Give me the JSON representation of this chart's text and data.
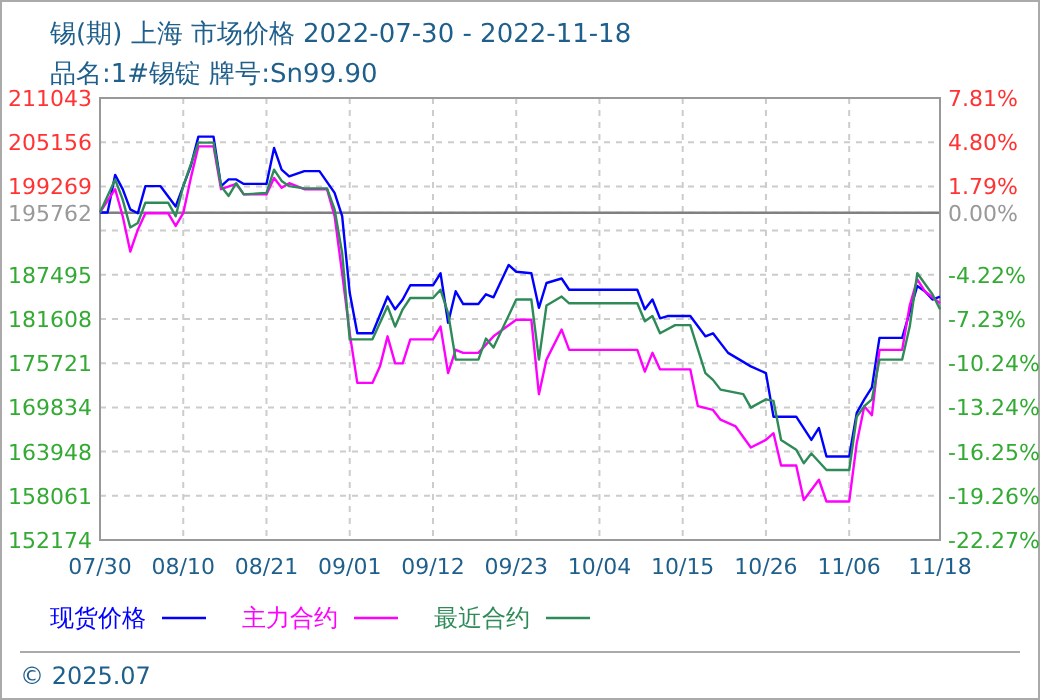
{
  "chart_data": {
    "type": "line",
    "title": "锡(期) 上海 市场价格 2022-07-30 - 2022-11-18",
    "subtitle": "品名:1#锡锭 牌号:Sn99.90",
    "annotations": [
      "© 2025.07"
    ],
    "xlim": [
      "2022-07-30",
      "2022-11-18"
    ],
    "xticks": [
      {
        "value": "2022-07-30",
        "label": "07/30"
      },
      {
        "value": "2022-08-10",
        "label": "08/10"
      },
      {
        "value": "2022-08-21",
        "label": "08/21"
      },
      {
        "value": "2022-09-01",
        "label": "09/01"
      },
      {
        "value": "2022-09-12",
        "label": "09/12"
      },
      {
        "value": "2022-09-23",
        "label": "09/23"
      },
      {
        "value": "2022-10-04",
        "label": "10/04"
      },
      {
        "value": "2022-10-15",
        "label": "10/15"
      },
      {
        "value": "2022-10-26",
        "label": "10/26"
      },
      {
        "value": "2022-11-06",
        "label": "11/06"
      },
      {
        "value": "2022-11-18",
        "label": "11/18"
      }
    ],
    "ylim": [
      152174,
      211043
    ],
    "yticks": [
      211043,
      205156,
      199269,
      195762,
      {
        "value": 193382,
        "label": null
      },
      187495,
      181608,
      175721,
      169834,
      163948,
      158061,
      152174
    ],
    "y2lim": [
      -22.27,
      7.81
    ],
    "y2ticks": [
      {
        "value": 7.81,
        "label": "7.81%"
      },
      {
        "value": 4.8,
        "label": "4.80%"
      },
      {
        "value": 1.79,
        "label": "1.79%"
      },
      {
        "value": 0,
        "label": "0.00%"
      },
      {
        "value": -4.22,
        "label": "-4.22%"
      },
      {
        "value": -7.23,
        "label": "-7.23%"
      },
      {
        "value": -10.24,
        "label": "-10.24%"
      },
      {
        "value": -13.24,
        "label": "-13.24%"
      },
      {
        "value": -16.25,
        "label": "-16.25%"
      },
      {
        "value": -19.26,
        "label": "-19.26%"
      },
      {
        "value": -22.27,
        "label": "-22.27%"
      }
    ],
    "grid": true,
    "legend": "bottom",
    "line_style": "solid",
    "ref_lines": [
      {
        "axis": "y",
        "value": 195762,
        "color": "#808080"
      }
    ],
    "series": [
      {
        "name": "现货价格",
        "color": "#0000ff",
        "x": [
          "2022-07-30",
          "2022-07-31",
          "2022-08-01",
          "2022-08-02",
          "2022-08-03",
          "2022-08-04",
          "2022-08-05",
          "2022-08-07",
          "2022-08-09",
          "2022-08-11",
          "2022-08-12",
          "2022-08-14",
          "2022-08-15",
          "2022-08-16",
          "2022-08-17",
          "2022-08-18",
          "2022-08-21",
          "2022-08-22",
          "2022-08-23",
          "2022-08-24",
          "2022-08-26",
          "2022-08-28",
          "2022-08-30",
          "2022-08-31",
          "2022-09-01",
          "2022-09-02",
          "2022-09-04",
          "2022-09-06",
          "2022-09-07",
          "2022-09-08",
          "2022-09-09",
          "2022-09-12",
          "2022-09-13",
          "2022-09-14",
          "2022-09-15",
          "2022-09-16",
          "2022-09-18",
          "2022-09-19",
          "2022-09-20",
          "2022-09-22",
          "2022-09-23",
          "2022-09-25",
          "2022-09-26",
          "2022-09-27",
          "2022-09-29",
          "2022-09-30",
          "2022-10-09",
          "2022-10-10",
          "2022-10-11",
          "2022-10-12",
          "2022-10-13",
          "2022-10-16",
          "2022-10-18",
          "2022-10-19",
          "2022-10-21",
          "2022-10-24",
          "2022-10-26",
          "2022-10-27",
          "2022-10-30",
          "2022-11-01",
          "2022-11-02",
          "2022-11-03",
          "2022-11-06",
          "2022-11-07",
          "2022-11-08",
          "2022-11-09",
          "2022-11-10",
          "2022-11-13",
          "2022-11-15",
          "2022-11-16",
          "2022-11-17",
          "2022-11-18"
        ],
        "values": [
          195800,
          195800,
          200800,
          198900,
          196200,
          195700,
          199300,
          199300,
          196600,
          202000,
          205900,
          205900,
          199300,
          200200,
          200200,
          199600,
          199600,
          204400,
          201500,
          200600,
          201300,
          201300,
          198400,
          195300,
          185100,
          179700,
          179700,
          184600,
          182900,
          184200,
          186100,
          186100,
          187700,
          181100,
          185300,
          183600,
          183600,
          184900,
          184500,
          188800,
          187900,
          187700,
          183100,
          186400,
          187000,
          185500,
          185500,
          182900,
          184200,
          181700,
          182000,
          182000,
          179300,
          179700,
          177100,
          175300,
          174400,
          168600,
          168600,
          165500,
          167100,
          163300,
          163300,
          169100,
          170900,
          172500,
          179100,
          179100,
          186000,
          185300,
          184200,
          184600
        ]
      },
      {
        "name": "主力合约",
        "color": "#ff00ff",
        "x": [
          "2022-07-30",
          "2022-08-01",
          "2022-08-02",
          "2022-08-03",
          "2022-08-04",
          "2022-08-05",
          "2022-08-08",
          "2022-08-09",
          "2022-08-10",
          "2022-08-11",
          "2022-08-12",
          "2022-08-14",
          "2022-08-15",
          "2022-08-17",
          "2022-08-18",
          "2022-08-21",
          "2022-08-22",
          "2022-08-23",
          "2022-08-24",
          "2022-08-26",
          "2022-08-29",
          "2022-08-30",
          "2022-08-31",
          "2022-09-01",
          "2022-09-02",
          "2022-09-04",
          "2022-09-05",
          "2022-09-06",
          "2022-09-07",
          "2022-09-08",
          "2022-09-09",
          "2022-09-12",
          "2022-09-13",
          "2022-09-14",
          "2022-09-15",
          "2022-09-16",
          "2022-09-18",
          "2022-09-20",
          "2022-09-23",
          "2022-09-25",
          "2022-09-26",
          "2022-09-27",
          "2022-09-29",
          "2022-09-30",
          "2022-10-09",
          "2022-10-10",
          "2022-10-11",
          "2022-10-12",
          "2022-10-16",
          "2022-10-17",
          "2022-10-19",
          "2022-10-20",
          "2022-10-22",
          "2022-10-24",
          "2022-10-26",
          "2022-10-27",
          "2022-10-28",
          "2022-10-30",
          "2022-10-31",
          "2022-11-02",
          "2022-11-03",
          "2022-11-06",
          "2022-11-07",
          "2022-11-08",
          "2022-11-09",
          "2022-11-10",
          "2022-11-13",
          "2022-11-14",
          "2022-11-15",
          "2022-11-16",
          "2022-11-18"
        ],
        "values": [
          195800,
          198900,
          195300,
          190600,
          193500,
          195700,
          195700,
          194000,
          195700,
          200400,
          204600,
          204600,
          198900,
          199600,
          198200,
          198200,
          200400,
          199100,
          199700,
          198900,
          198900,
          195300,
          187700,
          179700,
          173100,
          173100,
          175300,
          179300,
          175700,
          175700,
          178900,
          178900,
          180600,
          174400,
          177500,
          177100,
          177100,
          179300,
          181500,
          181500,
          171600,
          176200,
          180200,
          177500,
          177500,
          174600,
          177100,
          174900,
          174900,
          170000,
          169500,
          168200,
          167300,
          164500,
          165500,
          166400,
          162100,
          162100,
          157500,
          160200,
          157300,
          157300,
          165100,
          170000,
          168800,
          177500,
          177500,
          183400,
          186900,
          185300,
          183700
        ]
      },
      {
        "name": "最近合约",
        "color": "#2e8b57",
        "x": [
          "2022-07-30",
          "2022-08-01",
          "2022-08-02",
          "2022-08-03",
          "2022-08-04",
          "2022-08-05",
          "2022-08-08",
          "2022-08-09",
          "2022-08-10",
          "2022-08-12",
          "2022-08-14",
          "2022-08-15",
          "2022-08-16",
          "2022-08-17",
          "2022-08-18",
          "2022-08-21",
          "2022-08-22",
          "2022-08-23",
          "2022-08-24",
          "2022-08-26",
          "2022-08-29",
          "2022-08-30",
          "2022-08-31",
          "2022-09-01",
          "2022-09-04",
          "2022-09-06",
          "2022-09-07",
          "2022-09-08",
          "2022-09-09",
          "2022-09-12",
          "2022-09-13",
          "2022-09-14",
          "2022-09-15",
          "2022-09-18",
          "2022-09-19",
          "2022-09-20",
          "2022-09-23",
          "2022-09-25",
          "2022-09-26",
          "2022-09-27",
          "2022-09-29",
          "2022-09-30",
          "2022-10-09",
          "2022-10-10",
          "2022-10-11",
          "2022-10-12",
          "2022-10-14",
          "2022-10-16",
          "2022-10-18",
          "2022-10-19",
          "2022-10-20",
          "2022-10-23",
          "2022-10-24",
          "2022-10-26",
          "2022-10-27",
          "2022-10-28",
          "2022-10-30",
          "2022-10-31",
          "2022-11-01",
          "2022-11-03",
          "2022-11-06",
          "2022-11-07",
          "2022-11-08",
          "2022-11-09",
          "2022-11-10",
          "2022-11-13",
          "2022-11-14",
          "2022-11-15",
          "2022-11-17",
          "2022-11-18"
        ],
        "values": [
          195800,
          200200,
          197500,
          193800,
          194400,
          197100,
          197100,
          195300,
          199300,
          205100,
          205100,
          199300,
          198000,
          199700,
          198200,
          198400,
          201500,
          200000,
          199300,
          199000,
          199000,
          196200,
          190400,
          178900,
          178900,
          183300,
          180600,
          182900,
          184400,
          184400,
          185500,
          182400,
          176200,
          176200,
          179000,
          177800,
          184200,
          184200,
          176200,
          183400,
          184600,
          183700,
          183700,
          181300,
          182000,
          179700,
          180800,
          180800,
          174400,
          173500,
          172200,
          171600,
          169800,
          170900,
          170700,
          165500,
          164200,
          162400,
          163700,
          161500,
          161500,
          168600,
          170000,
          170900,
          176200,
          176200,
          180600,
          187700,
          184900,
          182900
        ]
      }
    ]
  }
}
